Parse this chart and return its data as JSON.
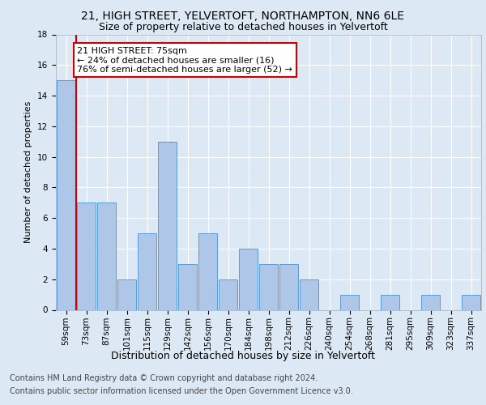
{
  "title1": "21, HIGH STREET, YELVERTOFT, NORTHAMPTON, NN6 6LE",
  "title2": "Size of property relative to detached houses in Yelvertoft",
  "xlabel": "Distribution of detached houses by size in Yelvertoft",
  "ylabel": "Number of detached properties",
  "categories": [
    "59sqm",
    "73sqm",
    "87sqm",
    "101sqm",
    "115sqm",
    "129sqm",
    "142sqm",
    "156sqm",
    "170sqm",
    "184sqm",
    "198sqm",
    "212sqm",
    "226sqm",
    "240sqm",
    "254sqm",
    "268sqm",
    "281sqm",
    "295sqm",
    "309sqm",
    "323sqm",
    "337sqm"
  ],
  "values": [
    15,
    7,
    7,
    2,
    5,
    11,
    3,
    5,
    2,
    4,
    3,
    3,
    2,
    0,
    1,
    0,
    1,
    0,
    1,
    0,
    1
  ],
  "bar_color": "#aec6e8",
  "bar_edge_color": "#5b9bd5",
  "annotation_text": "21 HIGH STREET: 75sqm\n← 24% of detached houses are smaller (16)\n76% of semi-detached houses are larger (52) →",
  "annotation_box_color": "#ffffff",
  "annotation_box_edge": "#cc0000",
  "red_line_color": "#cc0000",
  "ylim": [
    0,
    18
  ],
  "yticks": [
    0,
    2,
    4,
    6,
    8,
    10,
    12,
    14,
    16,
    18
  ],
  "footer1": "Contains HM Land Registry data © Crown copyright and database right 2024.",
  "footer2": "Contains public sector information licensed under the Open Government Licence v3.0.",
  "background_color": "#dce9f5",
  "plot_bg_color": "#dce9f5",
  "grid_color": "#ffffff",
  "title1_fontsize": 10,
  "title2_fontsize": 9,
  "xlabel_fontsize": 9,
  "ylabel_fontsize": 8,
  "tick_fontsize": 7.5,
  "annotation_fontsize": 8,
  "footer_fontsize": 7
}
